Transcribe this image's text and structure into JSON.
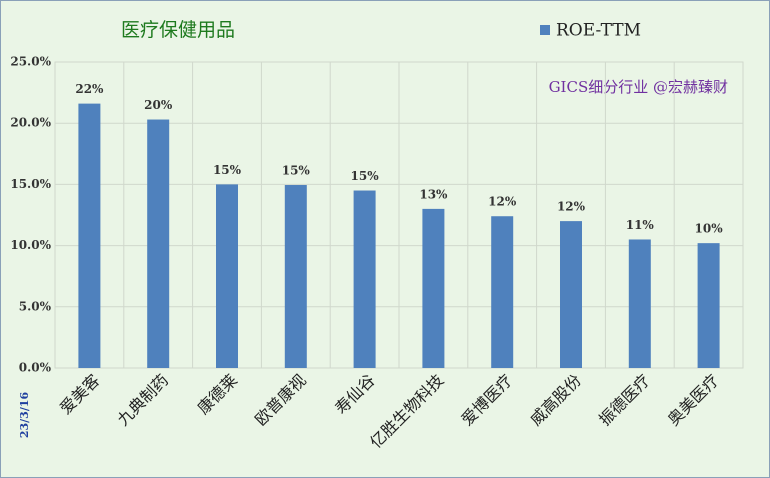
{
  "chart_data": {
    "type": "bar",
    "title": "医疗保健用品",
    "annotation": "GICS细分行业 @宏赫臻财",
    "date_label": "23/3/16",
    "categories": [
      "爱美客",
      "九典制药",
      "康德莱",
      "欧普康视",
      "寿仙谷",
      "亿胜生物科技",
      "爱博医疗",
      "威高股份",
      "振德医疗",
      "奥美医疗"
    ],
    "series": [
      {
        "name": "ROE-TTM",
        "color": "#4f81bd",
        "values": [
          21.6,
          20.3,
          15.0,
          14.95,
          14.5,
          13.0,
          12.4,
          12.0,
          10.5,
          10.2
        ],
        "value_labels": [
          "22%",
          "20%",
          "15%",
          "15%",
          "15%",
          "13%",
          "12%",
          "12%",
          "11%",
          "10%"
        ]
      }
    ],
    "ylim": [
      0,
      25
    ],
    "yticks": [
      {
        "value": 0,
        "label": "0.0%"
      },
      {
        "value": 5,
        "label": "5.0%"
      },
      {
        "value": 10,
        "label": "10.0%"
      },
      {
        "value": 15,
        "label": "15.0%"
      },
      {
        "value": 20,
        "label": "20.0%"
      },
      {
        "value": 25,
        "label": "25.0%"
      }
    ],
    "grid": true,
    "legend": "top-right"
  }
}
